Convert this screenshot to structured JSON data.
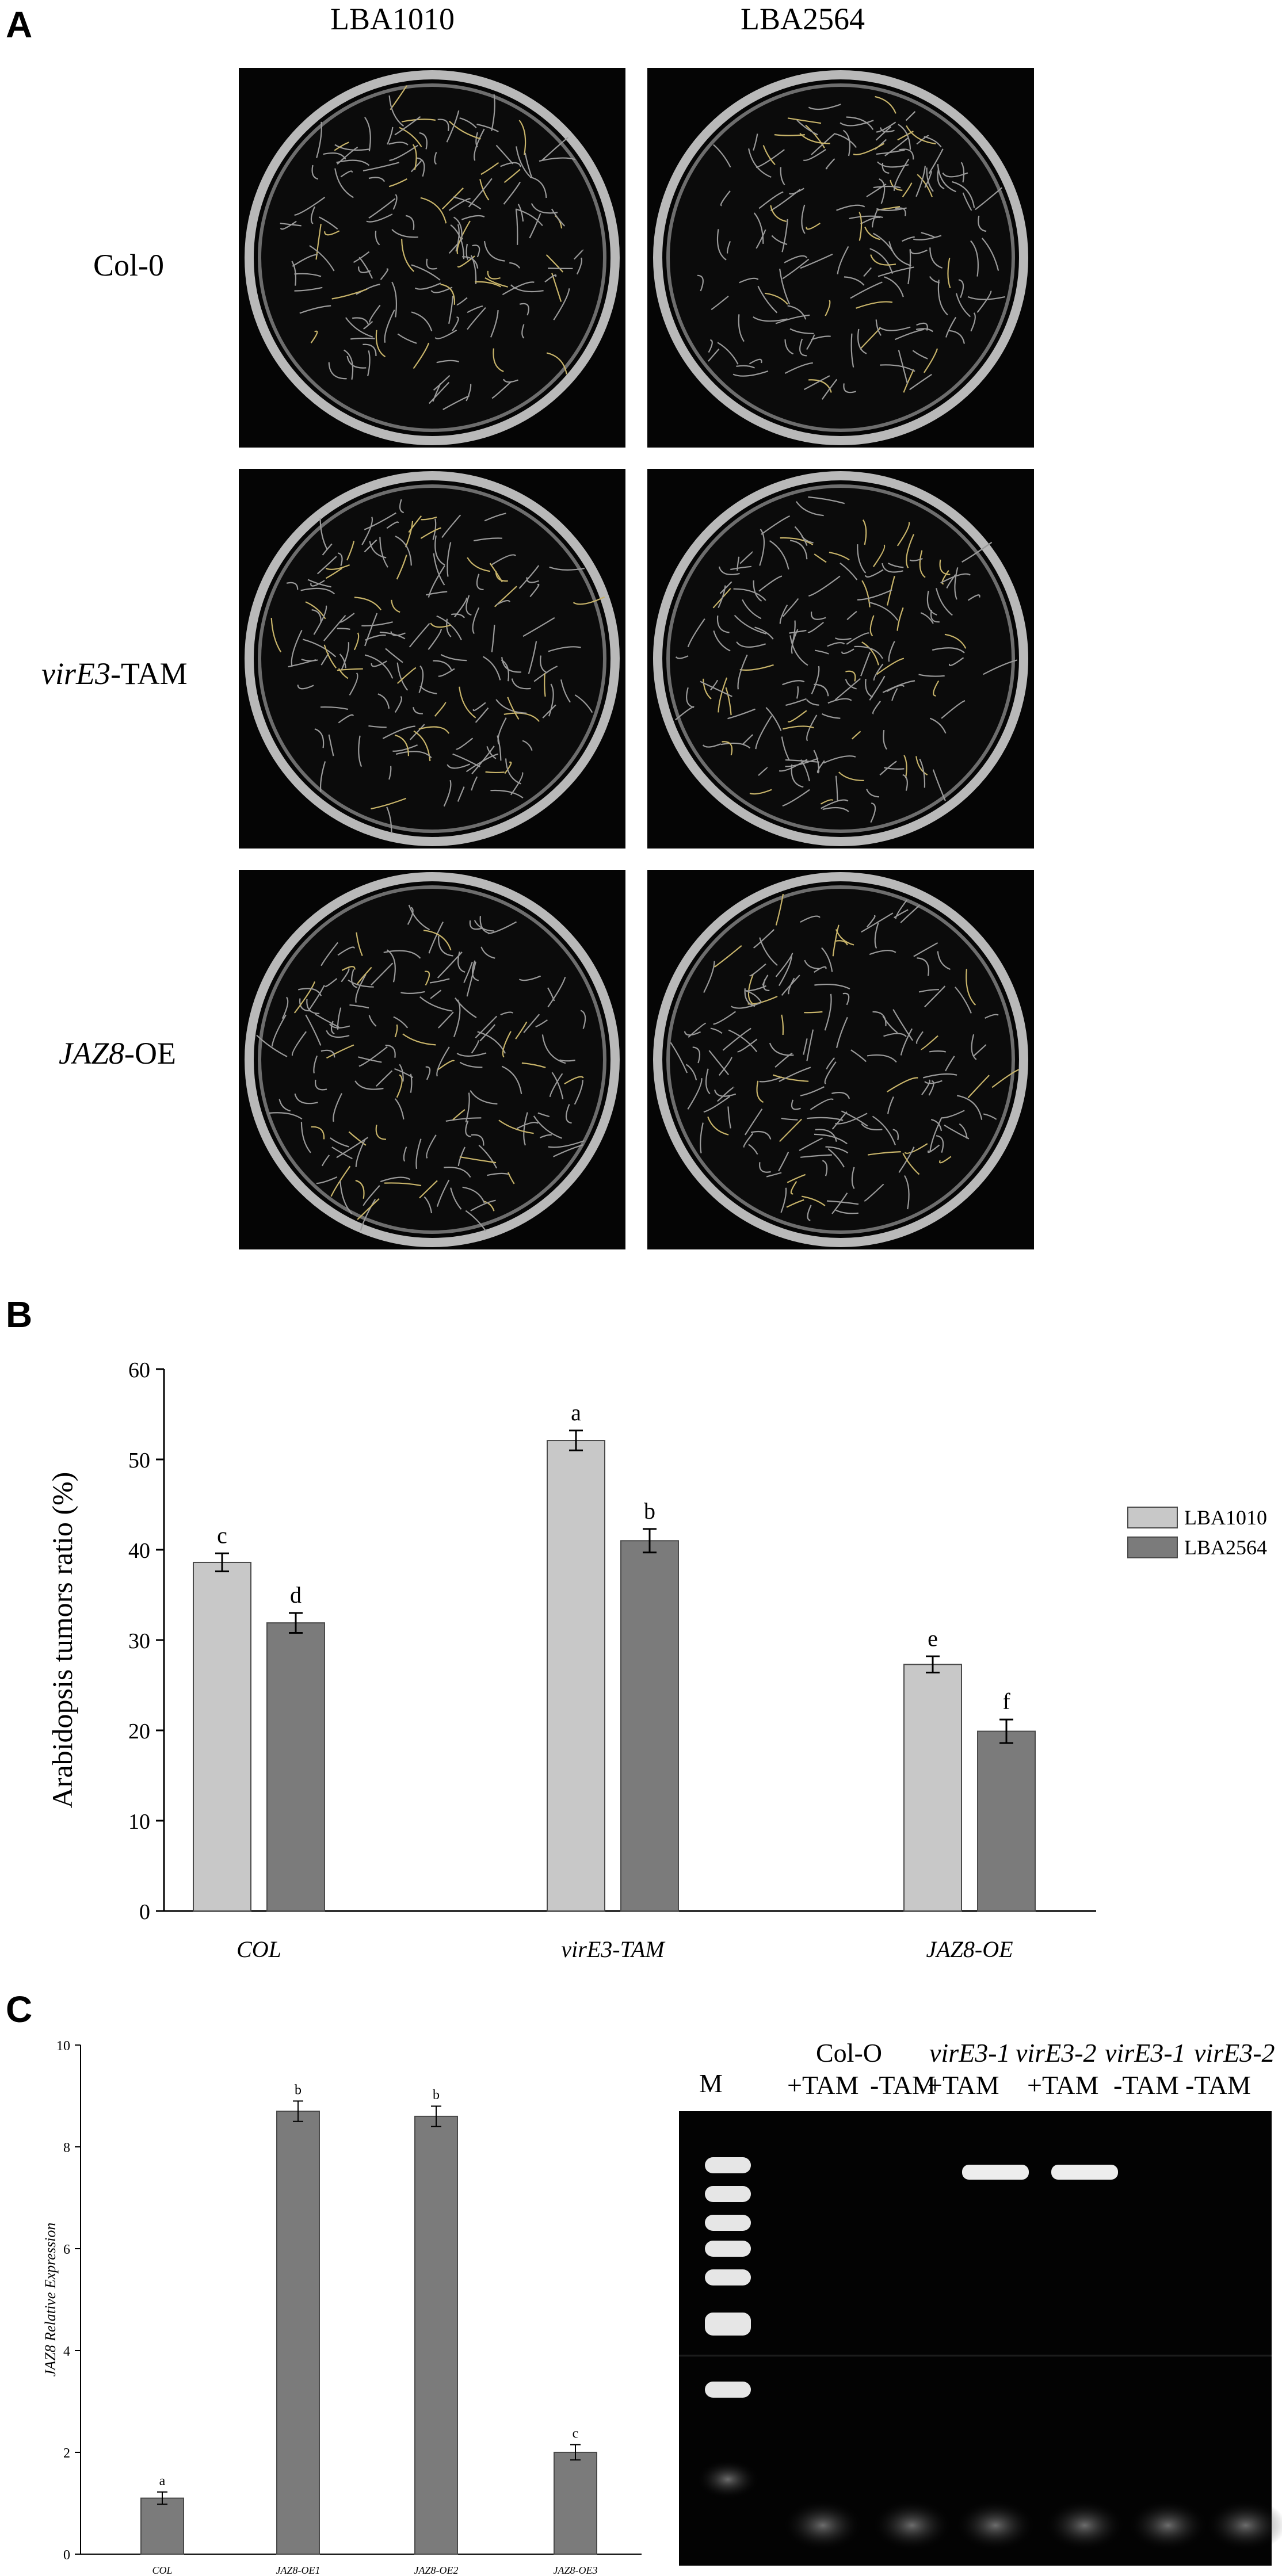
{
  "panel_a": {
    "letter": "A",
    "columns": [
      "LBA1010",
      "LBA2564"
    ],
    "rows": [
      {
        "italic": "",
        "plain": "Col-0"
      },
      {
        "italic": "virE3",
        "plain": "-TAM"
      },
      {
        "italic": "JAZ8",
        "plain": "-OE"
      }
    ]
  },
  "chart_data": [
    {
      "panel": "B",
      "type": "bar",
      "categories": [
        "COL",
        "virE3-TAM",
        "JAZ8-OE"
      ],
      "series": [
        {
          "name": "LBA1010",
          "color": "#c8c8c8",
          "values": [
            38.6,
            52.1,
            27.3
          ],
          "errors": [
            1.0,
            1.1,
            0.9
          ],
          "letters": [
            "c",
            "a",
            "e"
          ]
        },
        {
          "name": "LBA2564",
          "color": "#7b7b7b",
          "values": [
            31.9,
            41.0,
            19.9
          ],
          "errors": [
            1.1,
            1.3,
            1.3
          ],
          "letters": [
            "d",
            "b",
            "f"
          ]
        }
      ],
      "ylabel": "Arabidopsis tumors ratio (%)",
      "ylim": [
        0,
        60
      ],
      "yticks": [
        "0",
        "10",
        "20",
        "30",
        "40",
        "50",
        "60"
      ],
      "legend_position": "right"
    },
    {
      "panel": "C",
      "type": "bar",
      "categories": [
        "COL",
        "JAZ8-OE1",
        "JAZ8-OE2",
        "JAZ8-OE3"
      ],
      "series": [
        {
          "color": "#7b7b7b",
          "values": [
            1.1,
            8.7,
            8.6,
            2.0
          ],
          "errors": [
            0.12,
            0.2,
            0.2,
            0.15
          ],
          "letters": [
            "a",
            "b",
            "b",
            "c"
          ]
        }
      ],
      "ylabel": "JAZ8 Relative Expression",
      "ylim": [
        0,
        10
      ],
      "yticks": [
        "0",
        "2",
        "4",
        "6",
        "8",
        "10"
      ]
    }
  ],
  "panel_b": {
    "letter": "B"
  },
  "panel_c": {
    "letter": "C",
    "gel": {
      "marker": "M",
      "group_col0": "Col-O",
      "group_virE3_1": "virE3-1",
      "group_virE3_2": "virE3-2",
      "group_virE3_1b": "virE3-1",
      "group_virE3_2b": "virE3-2",
      "lane_labels": [
        "+TAM",
        "-TAM",
        "+TAM",
        "+TAM",
        "-TAM",
        "-TAM"
      ],
      "positive_lanes": [
        3,
        4
      ]
    }
  }
}
